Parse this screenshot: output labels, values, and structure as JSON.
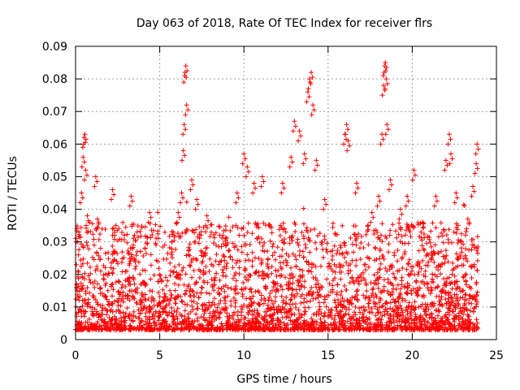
{
  "chart_data": {
    "type": "scatter",
    "title": "Day 063 of 2018, Rate Of TEC Index for receiver flrs",
    "xlabel": "GPS time / hours",
    "ylabel": "ROTI / TECUs",
    "xlim": [
      0,
      25
    ],
    "ylim": [
      0,
      0.09
    ],
    "xticks": [
      0,
      5,
      10,
      15,
      20,
      25
    ],
    "xtick_labels": [
      "0",
      "5",
      "10",
      "15",
      "20",
      "25"
    ],
    "yticks": [
      0,
      0.01,
      0.02,
      0.03,
      0.04,
      0.05,
      0.06,
      0.07,
      0.08,
      0.09
    ],
    "ytick_labels": [
      "0",
      "0.01",
      "0.02",
      "0.03",
      "0.04",
      "0.05",
      "0.06",
      "0.07",
      "0.08",
      "0.09"
    ],
    "grid": true,
    "marker": "plus",
    "series": [
      {
        "name": "ROTI",
        "color": "#ff0000",
        "points": [
          [
            0.2,
            0.033
          ],
          [
            0.35,
            0.045
          ],
          [
            0.45,
            0.056
          ],
          [
            0.5,
            0.062
          ],
          [
            0.55,
            0.063
          ],
          [
            0.6,
            0.052
          ],
          [
            0.7,
            0.038
          ],
          [
            1.2,
            0.05
          ],
          [
            1.3,
            0.037
          ],
          [
            2.2,
            0.046
          ],
          [
            2.4,
            0.035
          ],
          [
            3.3,
            0.044
          ],
          [
            3.5,
            0.032
          ],
          [
            4.4,
            0.039
          ],
          [
            5.8,
            0.033
          ],
          [
            6.1,
            0.039
          ],
          [
            6.3,
            0.045
          ],
          [
            6.4,
            0.058
          ],
          [
            6.45,
            0.066
          ],
          [
            6.5,
            0.082
          ],
          [
            6.55,
            0.084
          ],
          [
            6.6,
            0.072
          ],
          [
            6.9,
            0.049
          ],
          [
            7.2,
            0.043
          ],
          [
            7.8,
            0.038
          ],
          [
            9.6,
            0.045
          ],
          [
            10.0,
            0.057
          ],
          [
            10.2,
            0.053
          ],
          [
            10.6,
            0.048
          ],
          [
            11.1,
            0.05
          ],
          [
            12.3,
            0.048
          ],
          [
            12.8,
            0.056
          ],
          [
            13.0,
            0.067
          ],
          [
            13.3,
            0.064
          ],
          [
            13.6,
            0.057
          ],
          [
            13.8,
            0.076
          ],
          [
            13.9,
            0.08
          ],
          [
            14.0,
            0.082
          ],
          [
            14.1,
            0.072
          ],
          [
            14.3,
            0.055
          ],
          [
            14.8,
            0.043
          ],
          [
            16.0,
            0.063
          ],
          [
            16.1,
            0.066
          ],
          [
            16.2,
            0.061
          ],
          [
            16.7,
            0.048
          ],
          [
            17.6,
            0.039
          ],
          [
            18.0,
            0.044
          ],
          [
            18.2,
            0.063
          ],
          [
            18.3,
            0.078
          ],
          [
            18.35,
            0.084
          ],
          [
            18.4,
            0.085
          ],
          [
            18.45,
            0.08
          ],
          [
            18.5,
            0.066
          ],
          [
            18.7,
            0.049
          ],
          [
            19.3,
            0.04
          ],
          [
            19.7,
            0.044
          ],
          [
            20.1,
            0.052
          ],
          [
            20.6,
            0.036
          ],
          [
            21.4,
            0.044
          ],
          [
            22.0,
            0.055
          ],
          [
            22.2,
            0.063
          ],
          [
            22.3,
            0.057
          ],
          [
            22.6,
            0.045
          ],
          [
            23.3,
            0.037
          ],
          [
            23.6,
            0.047
          ],
          [
            23.8,
            0.054
          ],
          [
            23.85,
            0.06
          ]
        ]
      }
    ]
  }
}
